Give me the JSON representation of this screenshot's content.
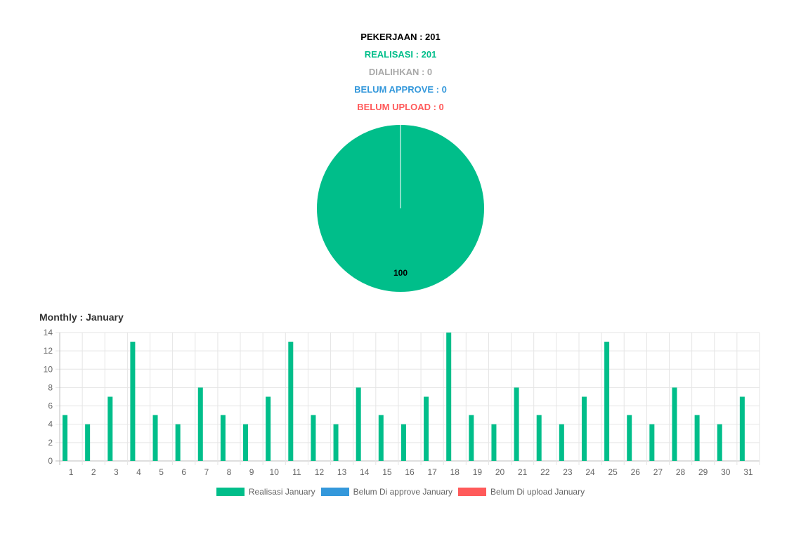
{
  "summary": {
    "pekerjaan": "PEKERJAAN : 201",
    "realisasi": "REALISASI : 201",
    "dialihkan": "DIALIHKAN : 0",
    "belum_approve": "BELUM APPROVE : 0",
    "belum_upload": "BELUM UPLOAD : 0"
  },
  "colors": {
    "pekerjaan": "#000000",
    "realisasi": "#00BE8A",
    "dialihkan": "#A9A9A9",
    "belum_approve": "#3498DB",
    "belum_upload": "#FF5A5A",
    "grid": "#E5E5E5",
    "tick": "#666666"
  },
  "monthly_title": "Monthly : January",
  "chart_data": [
    {
      "type": "pie",
      "slices": [
        {
          "label": "Realisasi",
          "value": 100,
          "color": "#00BE8A"
        },
        {
          "label": "Dialihkan",
          "value": 0,
          "color": "#A9A9A9"
        },
        {
          "label": "Belum Approve",
          "value": 0,
          "color": "#3498DB"
        },
        {
          "label": "Belum Upload",
          "value": 0,
          "color": "#FF5A5A"
        }
      ],
      "data_label": "100"
    },
    {
      "type": "bar",
      "categories": [
        "1",
        "2",
        "3",
        "4",
        "5",
        "6",
        "7",
        "8",
        "9",
        "10",
        "11",
        "12",
        "13",
        "14",
        "15",
        "16",
        "17",
        "18",
        "19",
        "20",
        "21",
        "22",
        "23",
        "24",
        "25",
        "26",
        "27",
        "28",
        "29",
        "30",
        "31"
      ],
      "series": [
        {
          "name": "Realisasi January",
          "color": "#00BE8A",
          "values": [
            5,
            4,
            7,
            13,
            5,
            4,
            8,
            5,
            4,
            7,
            13,
            5,
            4,
            8,
            5,
            4,
            7,
            14,
            5,
            4,
            8,
            5,
            4,
            7,
            13,
            5,
            4,
            8,
            5,
            4,
            7
          ]
        },
        {
          "name": "Belum Di approve January",
          "color": "#3498DB",
          "values": [
            0,
            0,
            0,
            0,
            0,
            0,
            0,
            0,
            0,
            0,
            0,
            0,
            0,
            0,
            0,
            0,
            0,
            0,
            0,
            0,
            0,
            0,
            0,
            0,
            0,
            0,
            0,
            0,
            0,
            0,
            0
          ]
        },
        {
          "name": "Belum Di upload January",
          "color": "#FF5A5A",
          "values": [
            0,
            0,
            0,
            0,
            0,
            0,
            0,
            0,
            0,
            0,
            0,
            0,
            0,
            0,
            0,
            0,
            0,
            0,
            0,
            0,
            0,
            0,
            0,
            0,
            0,
            0,
            0,
            0,
            0,
            0,
            0
          ]
        }
      ],
      "yticks": [
        0,
        2,
        4,
        6,
        8,
        10,
        12,
        14
      ],
      "ylim": [
        0,
        14
      ],
      "grid": true,
      "legend": "bottom"
    }
  ]
}
